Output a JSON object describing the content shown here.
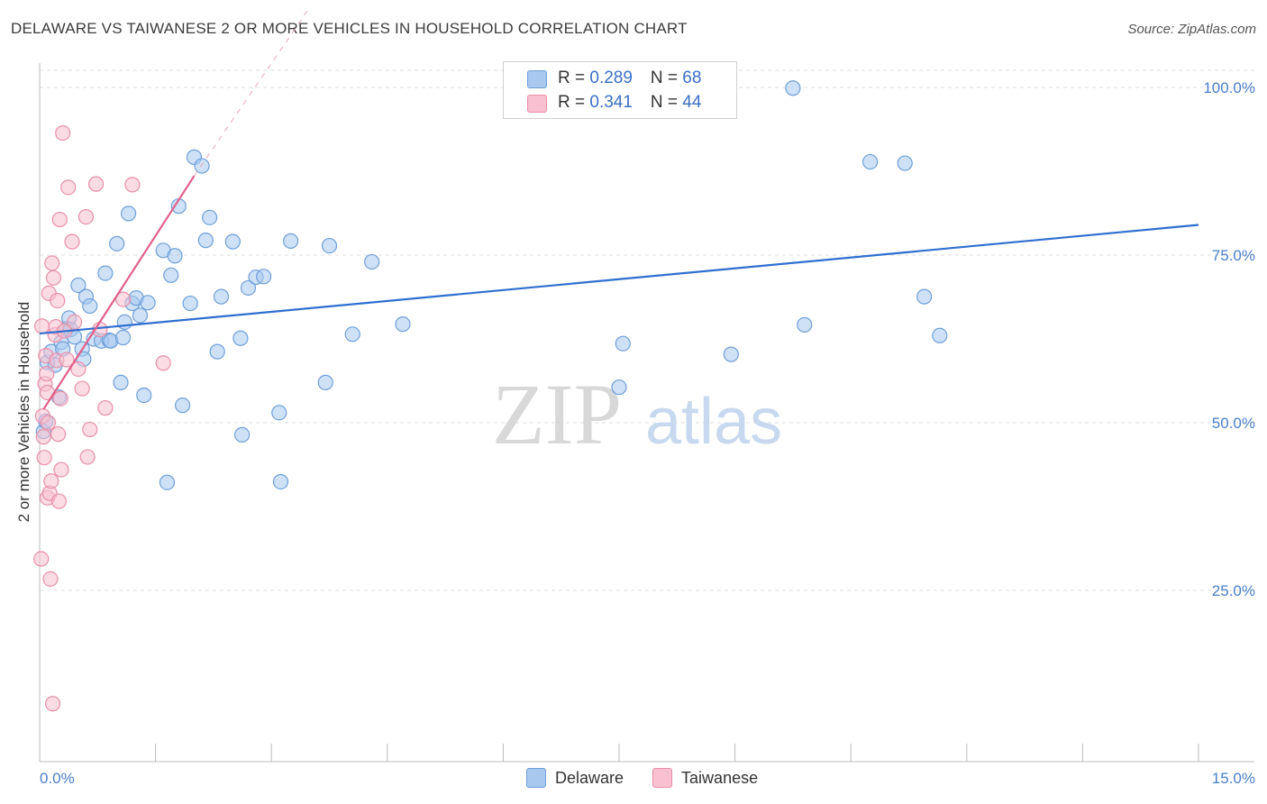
{
  "header": {
    "title": "DELAWARE VS TAIWANESE 2 OR MORE VEHICLES IN HOUSEHOLD CORRELATION CHART",
    "source": "Source: ZipAtlas.com"
  },
  "legend": {
    "rows": [
      {
        "r_label": "R = ",
        "r_value": "0.289",
        "n_label": "N = ",
        "n_value": "68"
      },
      {
        "r_label": "R = ",
        "r_value": "0.341",
        "n_label": "N = ",
        "n_value": "44"
      }
    ]
  },
  "bottom_legend": {
    "items": [
      {
        "label": "Delaware"
      },
      {
        "label": "Taiwanese"
      }
    ]
  },
  "watermark": {
    "part1": "ZIP",
    "part2": "atlas"
  },
  "colors": {
    "delaware_fill": "#a8c8f0",
    "delaware_stroke": "#6f9fd8",
    "delaware_line": "#2f6fd0",
    "taiwanese_fill": "#f8c0d0",
    "taiwanese_stroke": "#e890a8",
    "taiwanese_line": "#e0608a",
    "tick_text": "#4a7fc9",
    "grid": "#dddddd"
  },
  "chart_data": {
    "type": "scatter",
    "title": "DELAWARE VS TAIWANESE 2 OR MORE VEHICLES IN HOUSEHOLD CORRELATION CHART",
    "xlabel": "",
    "ylabel": "2 or more Vehicles in Household",
    "xlim": [
      0,
      15
    ],
    "ylim": [
      0,
      102
    ],
    "x_tick_labels": [
      "0.0%",
      "15.0%"
    ],
    "y_ticks": [
      25,
      50,
      75,
      100
    ],
    "y_tick_labels": [
      "25.0%",
      "50.0%",
      "75.0%",
      "100.0%"
    ],
    "grid": true,
    "legend_position": "top-center",
    "series": [
      {
        "name": "Delaware",
        "r": 0.289,
        "n": 68,
        "trend": {
          "x": [
            0,
            15
          ],
          "y": [
            63.3,
            79.5
          ]
        },
        "points": [
          [
            0.05,
            48.7
          ],
          [
            0.1,
            59.0
          ],
          [
            0.15,
            60.6
          ],
          [
            0.2,
            58.6
          ],
          [
            0.25,
            53.8
          ],
          [
            0.28,
            62.0
          ],
          [
            0.3,
            61.0
          ],
          [
            0.35,
            64.0
          ],
          [
            0.38,
            65.6
          ],
          [
            0.4,
            63.9
          ],
          [
            0.45,
            62.8
          ],
          [
            0.5,
            70.5
          ],
          [
            0.55,
            61.0
          ],
          [
            0.57,
            59.5
          ],
          [
            0.6,
            68.8
          ],
          [
            0.65,
            67.4
          ],
          [
            0.7,
            62.5
          ],
          [
            0.8,
            62.2
          ],
          [
            0.85,
            72.3
          ],
          [
            0.9,
            62.3
          ],
          [
            0.92,
            62.2
          ],
          [
            1.0,
            76.7
          ],
          [
            1.05,
            56.0
          ],
          [
            1.08,
            62.7
          ],
          [
            1.1,
            65.0
          ],
          [
            1.15,
            81.2
          ],
          [
            1.2,
            67.8
          ],
          [
            1.25,
            68.6
          ],
          [
            1.3,
            66.0
          ],
          [
            1.35,
            54.1
          ],
          [
            1.4,
            67.9
          ],
          [
            1.6,
            75.7
          ],
          [
            1.65,
            41.1
          ],
          [
            1.7,
            72.0
          ],
          [
            1.75,
            74.9
          ],
          [
            1.8,
            82.3
          ],
          [
            1.85,
            52.6
          ],
          [
            1.95,
            67.8
          ],
          [
            2.0,
            89.6
          ],
          [
            2.1,
            88.3
          ],
          [
            2.15,
            77.2
          ],
          [
            2.2,
            80.6
          ],
          [
            2.3,
            60.6
          ],
          [
            2.35,
            68.8
          ],
          [
            2.5,
            77.0
          ],
          [
            2.6,
            62.6
          ],
          [
            2.62,
            48.2
          ],
          [
            2.7,
            70.1
          ],
          [
            2.8,
            71.7
          ],
          [
            2.9,
            71.8
          ],
          [
            3.1,
            51.5
          ],
          [
            3.12,
            41.2
          ],
          [
            3.25,
            77.1
          ],
          [
            3.7,
            56.0
          ],
          [
            3.75,
            76.4
          ],
          [
            4.05,
            63.2
          ],
          [
            4.3,
            74.0
          ],
          [
            4.7,
            64.7
          ],
          [
            7.5,
            55.3
          ],
          [
            7.55,
            61.8
          ],
          [
            8.95,
            60.2
          ],
          [
            9.75,
            99.9
          ],
          [
            9.9,
            64.6
          ],
          [
            10.75,
            88.9
          ],
          [
            11.2,
            88.7
          ],
          [
            11.45,
            68.8
          ],
          [
            11.65,
            63.0
          ],
          [
            0.08,
            50.2
          ]
        ]
      },
      {
        "name": "Taiwanese",
        "r": 0.341,
        "n": 44,
        "trend": {
          "x": [
            0.05,
            2.0
          ],
          "y": [
            52.0,
            86.8
          ]
        },
        "trend_dashed": {
          "x": [
            2.0,
            3.5
          ],
          "y": [
            86.8,
            112.0
          ]
        },
        "points": [
          [
            0.02,
            29.7
          ],
          [
            0.03,
            64.4
          ],
          [
            0.04,
            51.0
          ],
          [
            0.05,
            47.9
          ],
          [
            0.06,
            44.8
          ],
          [
            0.07,
            55.8
          ],
          [
            0.08,
            60.0
          ],
          [
            0.09,
            57.3
          ],
          [
            0.1,
            38.8
          ],
          [
            0.11,
            50.0
          ],
          [
            0.12,
            69.3
          ],
          [
            0.13,
            39.5
          ],
          [
            0.14,
            26.7
          ],
          [
            0.15,
            41.3
          ],
          [
            0.16,
            73.8
          ],
          [
            0.17,
            8.1
          ],
          [
            0.18,
            71.6
          ],
          [
            0.2,
            63.1
          ],
          [
            0.21,
            64.3
          ],
          [
            0.22,
            59.3
          ],
          [
            0.23,
            68.2
          ],
          [
            0.24,
            48.3
          ],
          [
            0.25,
            38.3
          ],
          [
            0.26,
            80.3
          ],
          [
            0.27,
            53.6
          ],
          [
            0.28,
            43.0
          ],
          [
            0.3,
            93.2
          ],
          [
            0.32,
            63.7
          ],
          [
            0.35,
            59.4
          ],
          [
            0.37,
            85.1
          ],
          [
            0.42,
            77.0
          ],
          [
            0.55,
            55.1
          ],
          [
            0.6,
            80.7
          ],
          [
            0.62,
            44.9
          ],
          [
            0.73,
            85.6
          ],
          [
            0.78,
            63.9
          ],
          [
            0.85,
            52.2
          ],
          [
            1.08,
            68.4
          ],
          [
            1.2,
            85.5
          ],
          [
            1.6,
            58.9
          ],
          [
            0.45,
            65.0
          ],
          [
            0.5,
            58.0
          ],
          [
            0.65,
            49.0
          ],
          [
            0.1,
            54.5
          ]
        ]
      }
    ]
  }
}
